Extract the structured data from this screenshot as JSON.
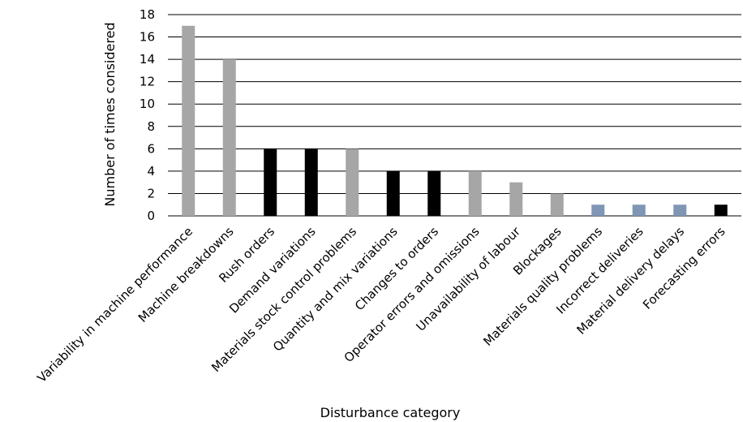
{
  "chart_data": {
    "type": "bar",
    "title": "",
    "xlabel": "Disturbance category",
    "ylabel": "Number of times considered",
    "ylim": [
      0,
      18
    ],
    "yticks": [
      "0",
      "2",
      "4",
      "6",
      "8",
      "10",
      "12",
      "14",
      "16",
      "18"
    ],
    "grid": true,
    "legend": "none",
    "categories": [
      "Variability in machine performance",
      "Machine breakdowns",
      "Rush orders",
      "Demand variations",
      "Materials stock control problems",
      "Quantity and mix variations",
      "Changes to orders",
      "Operator errors and omissions",
      "Unavailability of labour",
      "Blockages",
      "Materials quality problems",
      "Incorrect deliveries",
      "Material delivery delays",
      "Forecasting errors"
    ],
    "values": [
      17,
      14,
      6,
      6,
      6,
      4,
      4,
      4,
      3,
      2,
      1,
      1,
      1,
      1
    ],
    "bar_colors": [
      "#a6a6a6",
      "#a6a6a6",
      "#000000",
      "#000000",
      "#a6a6a6",
      "#000000",
      "#000000",
      "#a6a6a6",
      "#a6a6a6",
      "#a6a6a6",
      "#7f96b5",
      "#7f96b5",
      "#7f96b5",
      "#000000"
    ]
  }
}
